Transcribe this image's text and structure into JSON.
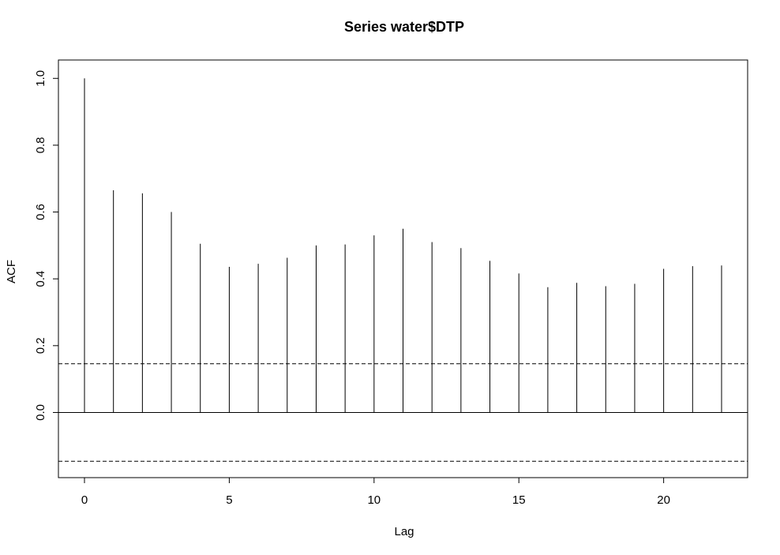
{
  "chart_data": {
    "type": "bar",
    "title": "Series  water$DTP",
    "xlabel": "Lag",
    "ylabel": "ACF",
    "x": [
      0,
      1,
      2,
      3,
      4,
      5,
      6,
      7,
      8,
      9,
      10,
      11,
      12,
      13,
      14,
      15,
      16,
      17,
      18,
      19,
      20,
      21,
      22
    ],
    "values": [
      1.0,
      0.665,
      0.656,
      0.6,
      0.505,
      0.436,
      0.445,
      0.463,
      0.5,
      0.503,
      0.53,
      0.55,
      0.51,
      0.492,
      0.454,
      0.416,
      0.375,
      0.388,
      0.378,
      0.385,
      0.43,
      0.438,
      0.44
    ],
    "confidence_bound": 0.146,
    "xlim": [
      -0.9,
      22.9
    ],
    "ylim": [
      -0.195,
      1.055
    ],
    "xticks": [
      0,
      5,
      10,
      15,
      20
    ],
    "yticks": [
      0.0,
      0.2,
      0.4,
      0.6,
      0.8,
      1.0
    ],
    "xtick_labels": [
      "0",
      "5",
      "10",
      "15",
      "20"
    ],
    "ytick_labels": [
      "0.0",
      "0.2",
      "0.4",
      "0.6",
      "0.8",
      "1.0"
    ],
    "grid": false,
    "colors": {
      "lines": "#000000",
      "background": "#ffffff"
    }
  }
}
